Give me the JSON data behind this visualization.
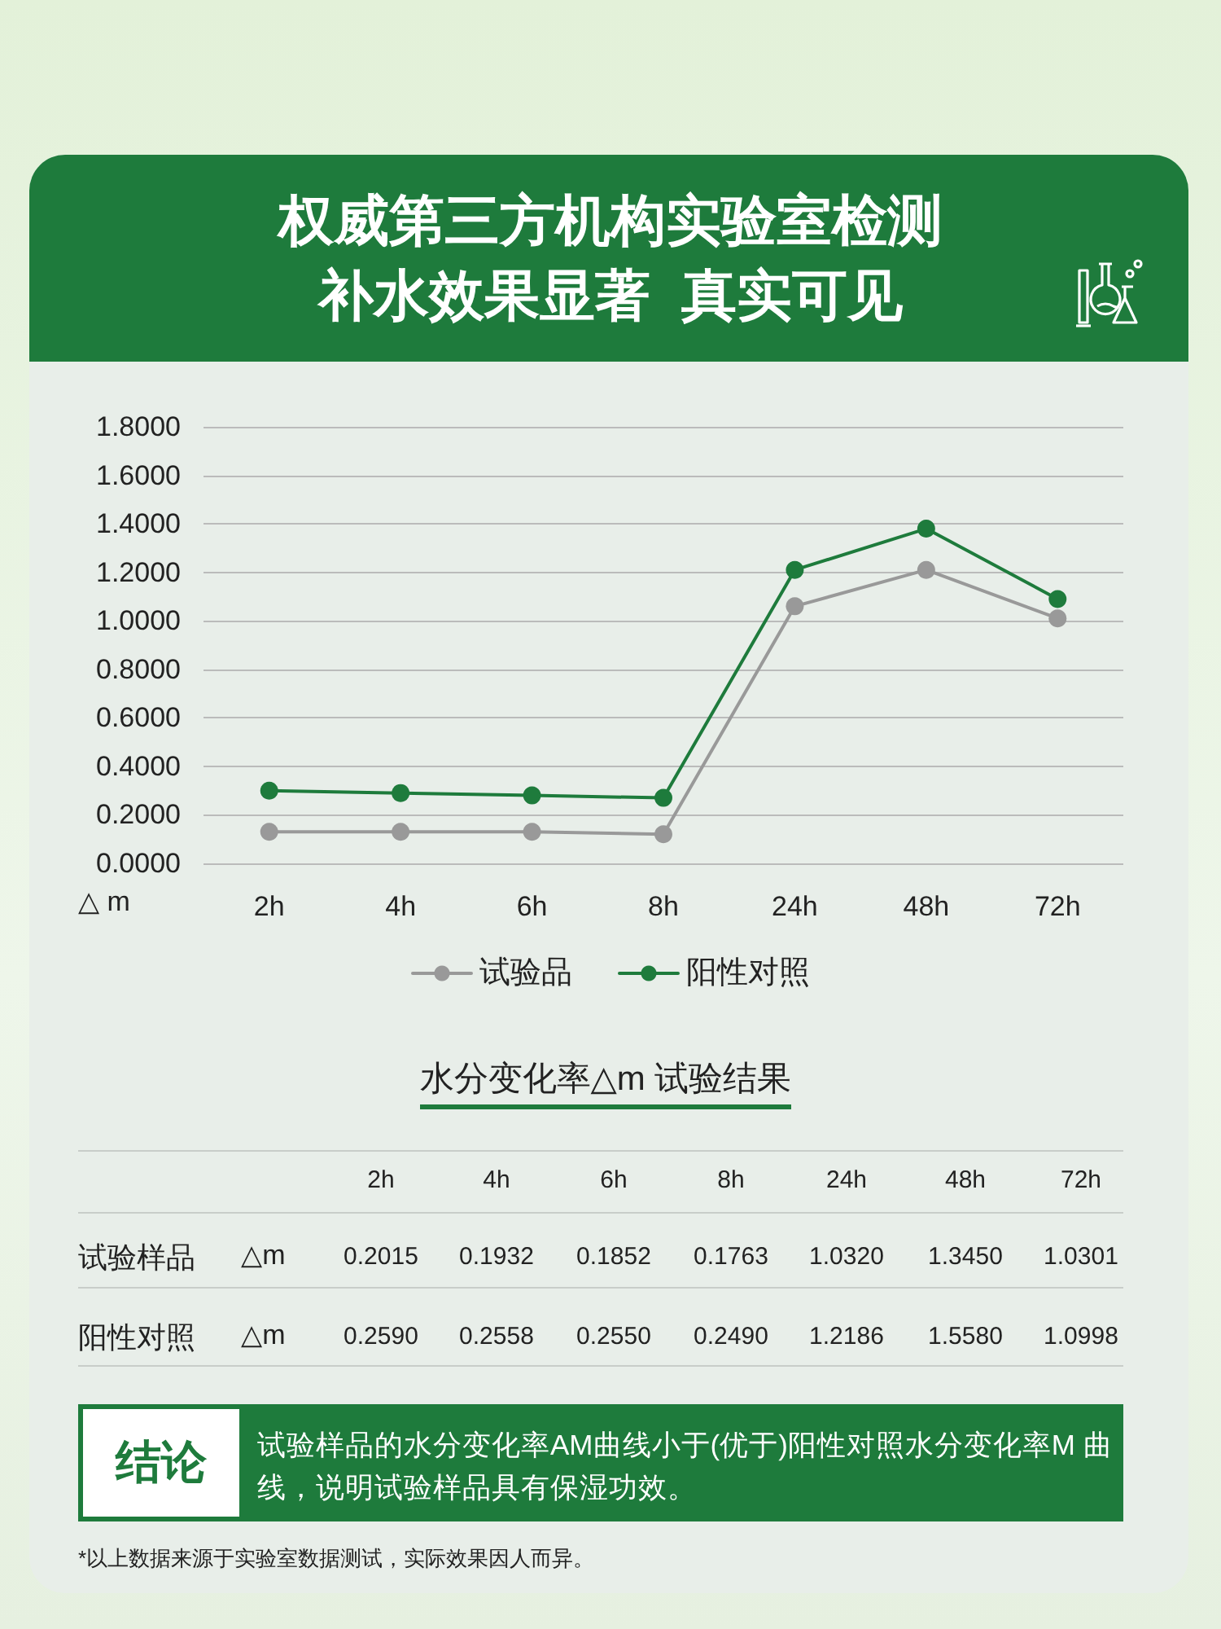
{
  "chart_data": [
    {
      "type": "line",
      "title": "权威第三方机构实验室检测",
      "subtitle": "补水效果显著  真实可见",
      "ylabel": "△ m",
      "categories": [
        "2h",
        "4h",
        "6h",
        "8h",
        "24h",
        "48h",
        "72h"
      ],
      "series": [
        {
          "name": "试验品",
          "color": "#999999",
          "values": [
            0.13,
            0.13,
            0.13,
            0.12,
            1.06,
            1.21,
            1.01
          ]
        },
        {
          "name": "阳性对照",
          "color": "#1e7b3c",
          "values": [
            0.3,
            0.29,
            0.28,
            0.27,
            1.21,
            1.38,
            1.09
          ]
        }
      ],
      "ylim": [
        0,
        1.8
      ],
      "yticks": [
        {
          "value": 0,
          "label": "0.0000"
        },
        {
          "value": 0.2,
          "label": "0.2000"
        },
        {
          "value": 0.4,
          "label": "0.4000"
        },
        {
          "value": 0.6,
          "label": "0.6000"
        },
        {
          "value": 0.8,
          "label": "0.8000"
        },
        {
          "value": 1,
          "label": "1.0000"
        },
        {
          "value": 1.2,
          "label": "1.2000"
        },
        {
          "value": 1.4,
          "label": "1.4000"
        },
        {
          "value": 1.6,
          "label": "1.6000"
        },
        {
          "value": 1.8,
          "label": "1.8000"
        }
      ],
      "grid": "y",
      "legend": "bottom",
      "marker": "circle",
      "line_style": "solid"
    },
    {
      "type": "heatmap",
      "title": "水分变化率△m 试验结果",
      "ylabel": "△m",
      "categories": [
        "2h",
        "4h",
        "6h",
        "8h",
        "24h",
        "48h",
        "72h"
      ],
      "y_categories": [
        "试验样品",
        "阳性对照"
      ],
      "cells": [
        [
          0.2015,
          0.1932,
          0.1852,
          0.1763,
          1.032,
          1.345,
          1.0301
        ],
        [
          0.259,
          0.2558,
          0.255,
          0.249,
          1.2186,
          1.558,
          1.0998
        ]
      ],
      "cell_labels": [
        [
          "0.2015",
          "0.1932",
          "0.1852",
          "0.1763",
          "1.0320",
          "1.3450",
          "1.0301"
        ],
        [
          "0.2590",
          "0.2558",
          "0.2550",
          "0.2490",
          "1.2186",
          "1.5580",
          "1.0998"
        ]
      ],
      "annotations": [
        "结论",
        "试验样品的水分变化率AM曲线小于(优于)阳性对照水分变化率M 曲线，说明试验样品具有保湿功效。",
        "*以上数据来源于实验室数据测试，实际效果因人而异。"
      ]
    }
  ]
}
